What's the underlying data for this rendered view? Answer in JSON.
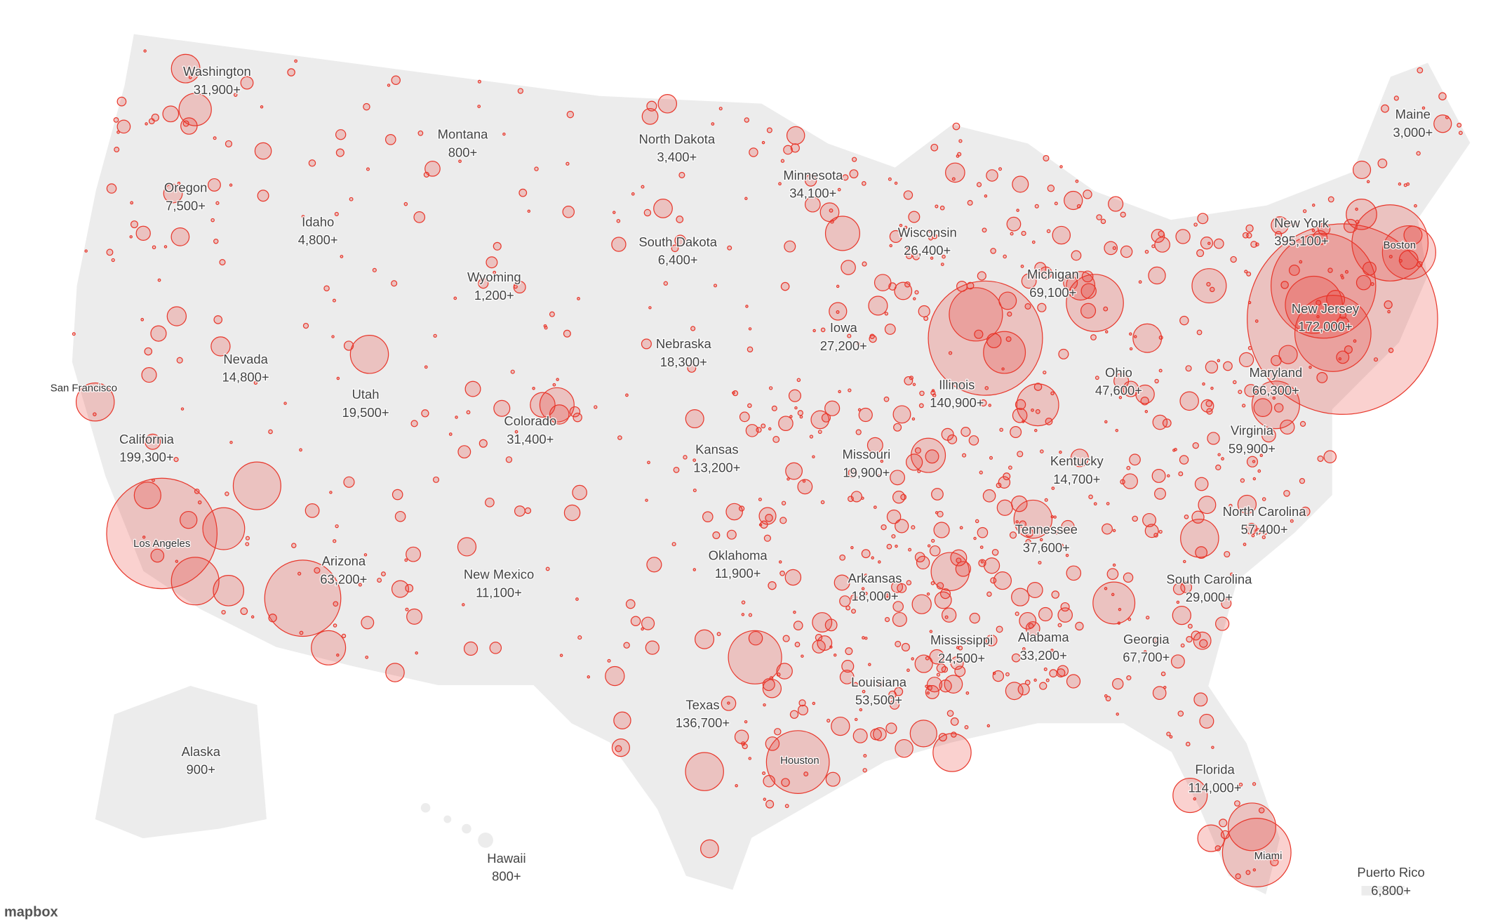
{
  "states": [
    {
      "name": "Washington",
      "count": "31,900+"
    },
    {
      "name": "Montana",
      "count": "800+"
    },
    {
      "name": "North Dakota",
      "count": "3,400+"
    },
    {
      "name": "Maine",
      "count": "3,000+"
    },
    {
      "name": "Oregon",
      "count": "7,500+"
    },
    {
      "name": "Minnesota",
      "count": "34,100+"
    },
    {
      "name": "Idaho",
      "count": "4,800+"
    },
    {
      "name": "Wisconsin",
      "count": "26,400+"
    },
    {
      "name": "New York",
      "count": "395,100+"
    },
    {
      "name": "South Dakota",
      "count": "6,400+"
    },
    {
      "name": "Wyoming",
      "count": "1,200+"
    },
    {
      "name": "Michigan",
      "count": "69,100+"
    },
    {
      "name": "New Jersey",
      "count": "172,000+"
    },
    {
      "name": "Iowa",
      "count": "27,200+"
    },
    {
      "name": "Nebraska",
      "count": "18,300+"
    },
    {
      "name": "Nevada",
      "count": "14,800+"
    },
    {
      "name": "Ohio",
      "count": "47,600+"
    },
    {
      "name": "Maryland",
      "count": "66,300+"
    },
    {
      "name": "Illinois",
      "count": "140,900+"
    },
    {
      "name": "Utah",
      "count": "19,500+"
    },
    {
      "name": "Colorado",
      "count": "31,400+"
    },
    {
      "name": "California",
      "count": "199,300+"
    },
    {
      "name": "Virginia",
      "count": "59,900+"
    },
    {
      "name": "Kansas",
      "count": "13,200+"
    },
    {
      "name": "Missouri",
      "count": "19,900+"
    },
    {
      "name": "Kentucky",
      "count": "14,700+"
    },
    {
      "name": "North Carolina",
      "count": "57,400+"
    },
    {
      "name": "Tennessee",
      "count": "37,600+"
    },
    {
      "name": "Oklahoma",
      "count": "11,900+"
    },
    {
      "name": "Arizona",
      "count": "63,200+"
    },
    {
      "name": "New Mexico",
      "count": "11,100+"
    },
    {
      "name": "Arkansas",
      "count": "18,000+"
    },
    {
      "name": "South Carolina",
      "count": "29,000+"
    },
    {
      "name": "Mississippi",
      "count": "24,500+"
    },
    {
      "name": "Alabama",
      "count": "33,200+"
    },
    {
      "name": "Georgia",
      "count": "67,700+"
    },
    {
      "name": "Louisiana",
      "count": "53,500+"
    },
    {
      "name": "Texas",
      "count": "136,700+"
    },
    {
      "name": "Alaska",
      "count": "900+"
    },
    {
      "name": "Florida",
      "count": "114,000+"
    },
    {
      "name": "Hawaii",
      "count": "800+"
    },
    {
      "name": "Puerto Rico",
      "count": "6,800+"
    }
  ],
  "cities": [
    "San Francisco",
    "Los Angeles",
    "Houston",
    "Boston",
    "Miami"
  ],
  "attribution": "mapbox"
}
